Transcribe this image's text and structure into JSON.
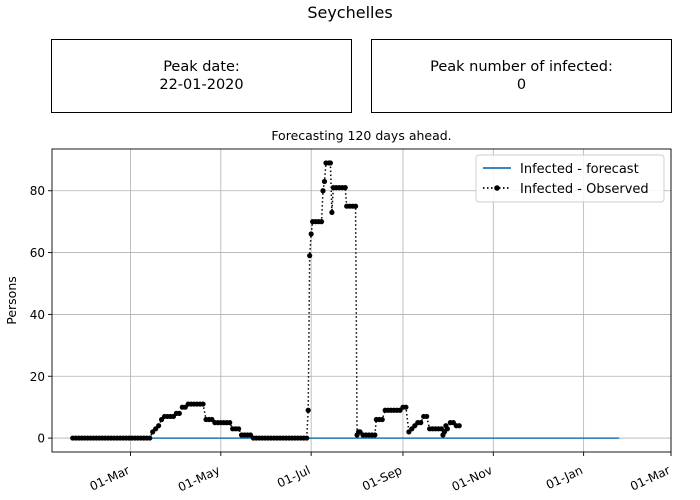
{
  "page_title": "Seychelles",
  "peak_date": {
    "label": "Peak date:",
    "value": "22-01-2020"
  },
  "peak_infected": {
    "label": "Peak number of infected:",
    "value": "0"
  },
  "chart_data": {
    "type": "line",
    "title": "Forecasting 120 days ahead.",
    "xlabel": "",
    "ylabel": "Persons",
    "x_axis": "date",
    "xlim": [
      "2020-01-08",
      "2021-03-01"
    ],
    "ylim": [
      -4.5,
      93.5
    ],
    "x_ticks": [
      {
        "date": "2020-03-01",
        "label": "01-Mar"
      },
      {
        "date": "2020-05-01",
        "label": "01-May"
      },
      {
        "date": "2020-07-01",
        "label": "01-Jul"
      },
      {
        "date": "2020-09-01",
        "label": "01-Sep"
      },
      {
        "date": "2020-11-01",
        "label": "01-Nov"
      },
      {
        "date": "2021-01-01",
        "label": "01-Jan"
      },
      {
        "date": "2021-03-01",
        "label": "01-Mar"
      }
    ],
    "y_ticks": [
      0,
      20,
      40,
      60,
      80
    ],
    "grid": true,
    "legend_position": "top-right",
    "series": [
      {
        "name": "Infected - forecast",
        "style": "solid",
        "color": "#1f77b4",
        "points": [
          [
            "2020-01-22",
            0
          ],
          [
            "2021-01-25",
            0
          ]
        ]
      },
      {
        "name": "Infected - Observed",
        "style": "dotted-with-markers",
        "color": "#000000",
        "points": [
          [
            "2020-01-22",
            0
          ],
          [
            "2020-01-24",
            0
          ],
          [
            "2020-01-26",
            0
          ],
          [
            "2020-01-28",
            0
          ],
          [
            "2020-01-30",
            0
          ],
          [
            "2020-02-01",
            0
          ],
          [
            "2020-02-03",
            0
          ],
          [
            "2020-02-05",
            0
          ],
          [
            "2020-02-07",
            0
          ],
          [
            "2020-02-09",
            0
          ],
          [
            "2020-02-11",
            0
          ],
          [
            "2020-02-13",
            0
          ],
          [
            "2020-02-15",
            0
          ],
          [
            "2020-02-17",
            0
          ],
          [
            "2020-02-19",
            0
          ],
          [
            "2020-02-21",
            0
          ],
          [
            "2020-02-23",
            0
          ],
          [
            "2020-02-25",
            0
          ],
          [
            "2020-02-27",
            0
          ],
          [
            "2020-02-29",
            0
          ],
          [
            "2020-03-02",
            0
          ],
          [
            "2020-03-04",
            0
          ],
          [
            "2020-03-06",
            0
          ],
          [
            "2020-03-08",
            0
          ],
          [
            "2020-03-10",
            0
          ],
          [
            "2020-03-12",
            0
          ],
          [
            "2020-03-14",
            0
          ],
          [
            "2020-03-16",
            2
          ],
          [
            "2020-03-18",
            3
          ],
          [
            "2020-03-20",
            4
          ],
          [
            "2020-03-22",
            6
          ],
          [
            "2020-03-24",
            7
          ],
          [
            "2020-03-26",
            7
          ],
          [
            "2020-03-28",
            7
          ],
          [
            "2020-03-30",
            7
          ],
          [
            "2020-04-01",
            8
          ],
          [
            "2020-04-03",
            8
          ],
          [
            "2020-04-05",
            10
          ],
          [
            "2020-04-07",
            10
          ],
          [
            "2020-04-09",
            11
          ],
          [
            "2020-04-11",
            11
          ],
          [
            "2020-04-13",
            11
          ],
          [
            "2020-04-15",
            11
          ],
          [
            "2020-04-17",
            11
          ],
          [
            "2020-04-19",
            11
          ],
          [
            "2020-04-21",
            6
          ],
          [
            "2020-04-23",
            6
          ],
          [
            "2020-04-25",
            6
          ],
          [
            "2020-04-27",
            5
          ],
          [
            "2020-04-29",
            5
          ],
          [
            "2020-05-01",
            5
          ],
          [
            "2020-05-03",
            5
          ],
          [
            "2020-05-05",
            5
          ],
          [
            "2020-05-07",
            5
          ],
          [
            "2020-05-09",
            3
          ],
          [
            "2020-05-11",
            3
          ],
          [
            "2020-05-13",
            3
          ],
          [
            "2020-05-15",
            1
          ],
          [
            "2020-05-17",
            1
          ],
          [
            "2020-05-19",
            1
          ],
          [
            "2020-05-21",
            1
          ],
          [
            "2020-05-23",
            0
          ],
          [
            "2020-05-25",
            0
          ],
          [
            "2020-05-27",
            0
          ],
          [
            "2020-05-29",
            0
          ],
          [
            "2020-05-31",
            0
          ],
          [
            "2020-06-02",
            0
          ],
          [
            "2020-06-04",
            0
          ],
          [
            "2020-06-06",
            0
          ],
          [
            "2020-06-08",
            0
          ],
          [
            "2020-06-10",
            0
          ],
          [
            "2020-06-12",
            0
          ],
          [
            "2020-06-14",
            0
          ],
          [
            "2020-06-16",
            0
          ],
          [
            "2020-06-18",
            0
          ],
          [
            "2020-06-20",
            0
          ],
          [
            "2020-06-22",
            0
          ],
          [
            "2020-06-24",
            0
          ],
          [
            "2020-06-26",
            0
          ],
          [
            "2020-06-28",
            0
          ],
          [
            "2020-06-29",
            9
          ],
          [
            "2020-06-30",
            59
          ],
          [
            "2020-07-01",
            66
          ],
          [
            "2020-07-02",
            70
          ],
          [
            "2020-07-04",
            70
          ],
          [
            "2020-07-06",
            70
          ],
          [
            "2020-07-08",
            70
          ],
          [
            "2020-07-09",
            80
          ],
          [
            "2020-07-10",
            83
          ],
          [
            "2020-07-11",
            89
          ],
          [
            "2020-07-13",
            89
          ],
          [
            "2020-07-14",
            89
          ],
          [
            "2020-07-15",
            73
          ],
          [
            "2020-07-16",
            81
          ],
          [
            "2020-07-18",
            81
          ],
          [
            "2020-07-20",
            81
          ],
          [
            "2020-07-22",
            81
          ],
          [
            "2020-07-24",
            81
          ],
          [
            "2020-07-25",
            75
          ],
          [
            "2020-07-27",
            75
          ],
          [
            "2020-07-29",
            75
          ],
          [
            "2020-07-31",
            75
          ],
          [
            "2020-08-01",
            1
          ],
          [
            "2020-08-02",
            2
          ],
          [
            "2020-08-03",
            2
          ],
          [
            "2020-08-05",
            1
          ],
          [
            "2020-08-07",
            1
          ],
          [
            "2020-08-09",
            1
          ],
          [
            "2020-08-11",
            1
          ],
          [
            "2020-08-13",
            1
          ],
          [
            "2020-08-14",
            6
          ],
          [
            "2020-08-16",
            6
          ],
          [
            "2020-08-18",
            6
          ],
          [
            "2020-08-20",
            9
          ],
          [
            "2020-08-22",
            9
          ],
          [
            "2020-08-24",
            9
          ],
          [
            "2020-08-26",
            9
          ],
          [
            "2020-08-28",
            9
          ],
          [
            "2020-08-30",
            9
          ],
          [
            "2020-09-01",
            10
          ],
          [
            "2020-09-03",
            10
          ],
          [
            "2020-09-05",
            2
          ],
          [
            "2020-09-07",
            3
          ],
          [
            "2020-09-09",
            4
          ],
          [
            "2020-09-11",
            5
          ],
          [
            "2020-09-13",
            5
          ],
          [
            "2020-09-15",
            7
          ],
          [
            "2020-09-17",
            7
          ],
          [
            "2020-09-19",
            3
          ],
          [
            "2020-09-21",
            3
          ],
          [
            "2020-09-23",
            3
          ],
          [
            "2020-09-25",
            3
          ],
          [
            "2020-09-27",
            3
          ],
          [
            "2020-09-28",
            1
          ],
          [
            "2020-09-29",
            2
          ],
          [
            "2020-09-30",
            4
          ],
          [
            "2020-10-01",
            3
          ],
          [
            "2020-10-03",
            5
          ],
          [
            "2020-10-05",
            5
          ],
          [
            "2020-10-07",
            4
          ],
          [
            "2020-10-09",
            4
          ]
        ]
      }
    ]
  }
}
